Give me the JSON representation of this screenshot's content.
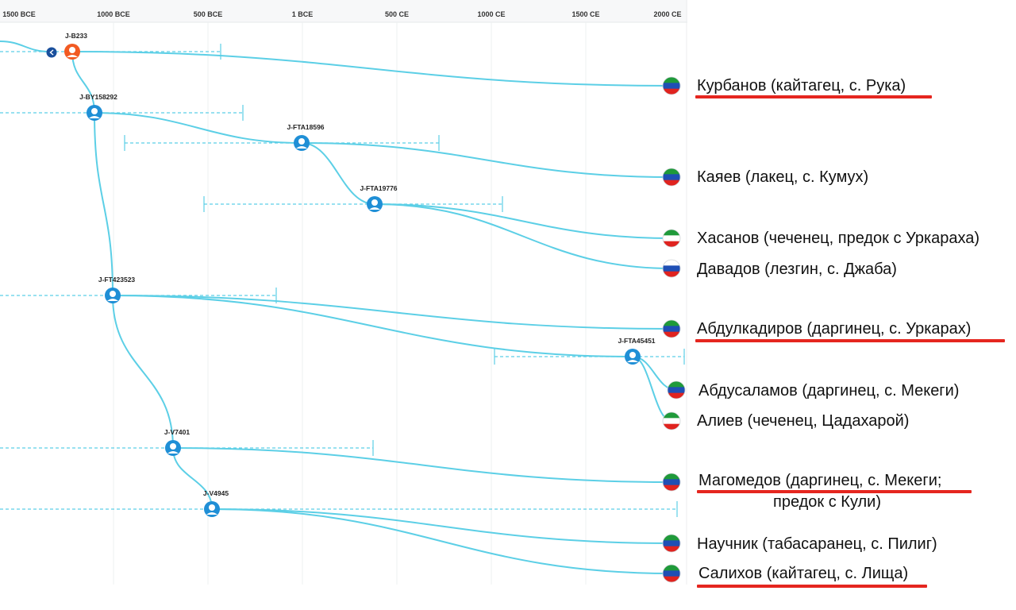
{
  "timeline": {
    "ticks": [
      "1500 BCE",
      "1000 BCE",
      "500 BCE",
      "1 BCE",
      "500 CE",
      "1000 CE",
      "1500 CE",
      "2000 CE"
    ]
  },
  "nodes": [
    {
      "id": "J-B233",
      "label": "J-B233",
      "highlight": true
    },
    {
      "id": "J-BY158292",
      "label": "J-BY158292"
    },
    {
      "id": "J-FTA18596",
      "label": "J-FTA18596"
    },
    {
      "id": "J-FTA19776",
      "label": "J-FTA19776"
    },
    {
      "id": "J-FT423523",
      "label": "J-FT423523"
    },
    {
      "id": "J-FTA45451",
      "label": "J-FTA45451"
    },
    {
      "id": "J-V7401",
      "label": "J-V7401"
    },
    {
      "id": "J-V4945",
      "label": "J-V4945"
    }
  ],
  "people": [
    {
      "name": "Курбанов (кайтагец, с. Рука)",
      "underlined": true,
      "flag": "dagestan"
    },
    {
      "name": "Каяев (лакец, с. Кумух)",
      "underlined": false,
      "flag": "dagestan"
    },
    {
      "name": "Хасанов (чеченец, предок с Уркараха)",
      "underlined": false,
      "flag": "chechnya"
    },
    {
      "name": "Давадов (лезгин, с. Джаба)",
      "underlined": false,
      "flag": "russia"
    },
    {
      "name": "Абдулкадиров (даргинец, с. Уркарах)",
      "underlined": true,
      "flag": "dagestan"
    },
    {
      "name": "Абдусаламов (даргинец, с. Мекеги)",
      "underlined": false,
      "flag": "dagestan"
    },
    {
      "name": "Алиев (чеченец, Цадахарой)",
      "underlined": false,
      "flag": "chechnya"
    },
    {
      "name": "Магомедов (даргинец, с. Мекеги;",
      "name_cont": "предок с Кули)",
      "underlined": true,
      "flag": "dagestan"
    },
    {
      "name": "Научник (табасаранец, с. Пилиг)",
      "underlined": false,
      "flag": "dagestan"
    },
    {
      "name": "Салихов (кайтагец, с. Лища)",
      "underlined": true,
      "flag": "dagestan"
    }
  ],
  "colors": {
    "line": "#5ccfe6",
    "node": "#1f8fd6",
    "node_highlight": "#f25a22",
    "underline": "#e5261f"
  }
}
